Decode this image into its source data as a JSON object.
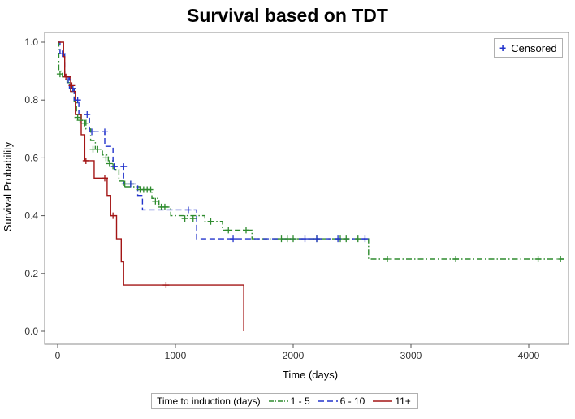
{
  "chart_data": {
    "type": "line",
    "title": "Survival based on TDT",
    "xlabel": "Time (days)",
    "ylabel": "Survival Probability",
    "xlim": [
      0,
      4300
    ],
    "ylim": [
      0,
      1
    ],
    "xticks": [
      0,
      1000,
      2000,
      3000,
      4000
    ],
    "yticks": [
      0.0,
      0.2,
      0.4,
      0.6,
      0.8,
      1.0
    ],
    "xtick_labels": [
      "0",
      "1000",
      "2000",
      "3000",
      "4000"
    ],
    "ytick_labels": [
      "0.0",
      "0.2",
      "0.4",
      "0.6",
      "0.8",
      "1.0"
    ],
    "legend_title": "Time to induction (days)",
    "censor_label": "Censored",
    "series": [
      {
        "name": "1 - 5",
        "color": "#2e8b2e",
        "style": "dashdot",
        "steps": [
          [
            0,
            1.0
          ],
          [
            10,
            0.9
          ],
          [
            40,
            0.88
          ],
          [
            80,
            0.86
          ],
          [
            110,
            0.83
          ],
          [
            140,
            0.79
          ],
          [
            160,
            0.75
          ],
          [
            200,
            0.73
          ],
          [
            240,
            0.7
          ],
          [
            280,
            0.66
          ],
          [
            320,
            0.63
          ],
          [
            380,
            0.61
          ],
          [
            430,
            0.59
          ],
          [
            470,
            0.56
          ],
          [
            520,
            0.52
          ],
          [
            560,
            0.5
          ],
          [
            640,
            0.5
          ],
          [
            700,
            0.49
          ],
          [
            800,
            0.46
          ],
          [
            860,
            0.43
          ],
          [
            960,
            0.4
          ],
          [
            1250,
            0.38
          ],
          [
            1400,
            0.35
          ],
          [
            1650,
            0.32
          ],
          [
            2630,
            0.32
          ],
          [
            2640,
            0.25
          ],
          [
            4300,
            0.25
          ]
        ],
        "censored": [
          [
            20,
            0.89
          ],
          [
            130,
            0.84
          ],
          [
            170,
            0.74
          ],
          [
            190,
            0.73
          ],
          [
            230,
            0.72
          ],
          [
            300,
            0.63
          ],
          [
            340,
            0.63
          ],
          [
            410,
            0.6
          ],
          [
            440,
            0.58
          ],
          [
            570,
            0.51
          ],
          [
            620,
            0.51
          ],
          [
            700,
            0.49
          ],
          [
            730,
            0.49
          ],
          [
            760,
            0.49
          ],
          [
            790,
            0.49
          ],
          [
            830,
            0.45
          ],
          [
            880,
            0.43
          ],
          [
            910,
            0.43
          ],
          [
            1080,
            0.39
          ],
          [
            1150,
            0.39
          ],
          [
            1300,
            0.38
          ],
          [
            1450,
            0.35
          ],
          [
            1600,
            0.35
          ],
          [
            1900,
            0.32
          ],
          [
            1950,
            0.32
          ],
          [
            2000,
            0.32
          ],
          [
            2200,
            0.32
          ],
          [
            2400,
            0.32
          ],
          [
            2450,
            0.32
          ],
          [
            2550,
            0.32
          ],
          [
            2800,
            0.25
          ],
          [
            3380,
            0.25
          ],
          [
            4080,
            0.25
          ],
          [
            4270,
            0.25
          ]
        ]
      },
      {
        "name": "6 - 10",
        "color": "#2233cc",
        "style": "dashed",
        "steps": [
          [
            0,
            1.0
          ],
          [
            20,
            0.96
          ],
          [
            60,
            0.88
          ],
          [
            100,
            0.84
          ],
          [
            140,
            0.8
          ],
          [
            180,
            0.75
          ],
          [
            270,
            0.69
          ],
          [
            400,
            0.64
          ],
          [
            470,
            0.57
          ],
          [
            560,
            0.51
          ],
          [
            680,
            0.47
          ],
          [
            720,
            0.42
          ],
          [
            1130,
            0.42
          ],
          [
            1180,
            0.32
          ],
          [
            2630,
            0.32
          ]
        ],
        "censored": [
          [
            40,
            0.96
          ],
          [
            90,
            0.87
          ],
          [
            130,
            0.84
          ],
          [
            170,
            0.8
          ],
          [
            250,
            0.75
          ],
          [
            290,
            0.69
          ],
          [
            400,
            0.69
          ],
          [
            480,
            0.57
          ],
          [
            560,
            0.57
          ],
          [
            620,
            0.51
          ],
          [
            1110,
            0.42
          ],
          [
            1490,
            0.32
          ],
          [
            2100,
            0.32
          ],
          [
            2200,
            0.32
          ],
          [
            2380,
            0.32
          ],
          [
            2610,
            0.32
          ]
        ]
      },
      {
        "name": "11+",
        "color": "#a31515",
        "style": "solid",
        "steps": [
          [
            0,
            1.0
          ],
          [
            50,
            0.95
          ],
          [
            60,
            0.88
          ],
          [
            110,
            0.83
          ],
          [
            150,
            0.75
          ],
          [
            200,
            0.68
          ],
          [
            230,
            0.59
          ],
          [
            310,
            0.53
          ],
          [
            420,
            0.47
          ],
          [
            450,
            0.4
          ],
          [
            500,
            0.32
          ],
          [
            540,
            0.24
          ],
          [
            560,
            0.16
          ],
          [
            1570,
            0.16
          ],
          [
            1580,
            0.0
          ]
        ],
        "censored": [
          [
            70,
            0.88
          ],
          [
            120,
            0.85
          ],
          [
            240,
            0.59
          ],
          [
            400,
            0.53
          ],
          [
            470,
            0.4
          ],
          [
            920,
            0.16
          ]
        ]
      }
    ]
  }
}
